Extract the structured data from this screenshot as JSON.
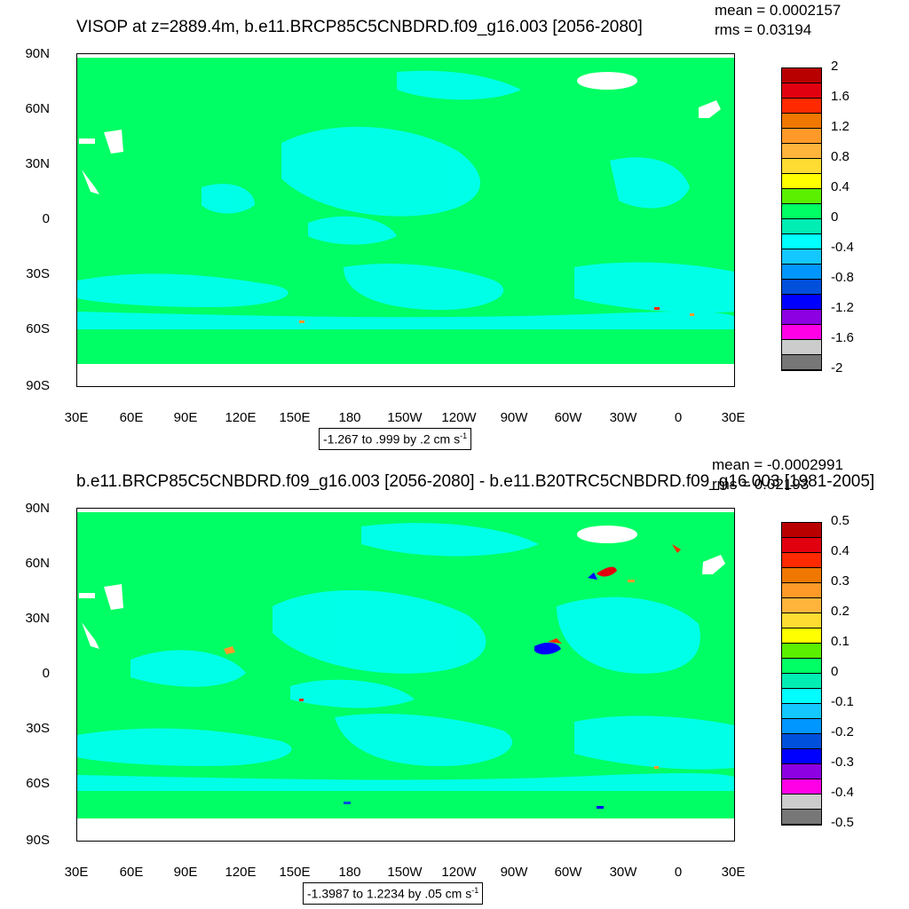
{
  "panels": [
    {
      "title": "VISOP at z=2889.4m, b.e11.BRCP85C5CNBDRD.f09_g16.003 [2056-2080]",
      "mean": "mean = 0.0002157",
      "rms": "rms = 0.03194",
      "range": "-1.267 to .999 by .2 cm s",
      "range_unit_exp": "-1",
      "lat_labels": [
        "90N",
        "60N",
        "30N",
        "0",
        "30S",
        "60S",
        "90S"
      ],
      "lon_labels": [
        "30E",
        "60E",
        "90E",
        "120E",
        "150E",
        "180",
        "150W",
        "120W",
        "90W",
        "60W",
        "30W",
        "0",
        "30E"
      ],
      "colorbar_labels": [
        "2",
        "1.6",
        "1.2",
        "0.8",
        "0.4",
        "0",
        "-0.4",
        "-0.8",
        "-1.2",
        "-1.6",
        "-2"
      ],
      "colorbar_colors": [
        "#b90000",
        "#e1000f",
        "#ff2a00",
        "#f07800",
        "#ff9a28",
        "#ffb43c",
        "#ffdc32",
        "#ffff00",
        "#5af000",
        "#00ff64",
        "#00eeb4",
        "#00ffff",
        "#14c8ff",
        "#0096ff",
        "#0050dc",
        "#0000ff",
        "#8c00e1",
        "#ff00e6",
        "#cccccc",
        "#777777"
      ]
    },
    {
      "title": "b.e11.BRCP85C5CNBDRD.f09_g16.003 [2056-2080] - b.e11.B20TRC5CNBDRD.f09_g16.003 [1981-2005]",
      "mean": "mean = -0.0002991",
      "rms": "rms = 0.02193",
      "range": "-1.3987 to 1.2234 by .05 cm s",
      "range_unit_exp": "-1",
      "lat_labels": [
        "90N",
        "60N",
        "30N",
        "0",
        "30S",
        "60S",
        "90S"
      ],
      "lon_labels": [
        "30E",
        "60E",
        "90E",
        "120E",
        "150E",
        "180",
        "150W",
        "120W",
        "90W",
        "60W",
        "30W",
        "0",
        "30E"
      ],
      "colorbar_labels": [
        "0.5",
        "0.4",
        "0.3",
        "0.2",
        "0.1",
        "0",
        "-0.1",
        "-0.2",
        "-0.3",
        "-0.4",
        "-0.5"
      ],
      "colorbar_colors": [
        "#b90000",
        "#e1000f",
        "#ff2a00",
        "#f07800",
        "#ff9a28",
        "#ffb43c",
        "#ffdc32",
        "#ffff00",
        "#5af000",
        "#00ff64",
        "#00eeb4",
        "#00ffff",
        "#14c8ff",
        "#0096ff",
        "#0050dc",
        "#0000ff",
        "#8c00e1",
        "#ff00e6",
        "#cccccc",
        "#777777"
      ]
    }
  ],
  "colors": {
    "ocean_base": "#00ff64",
    "negative_shade": "#00ffff",
    "land_missing": "#ffffff"
  }
}
